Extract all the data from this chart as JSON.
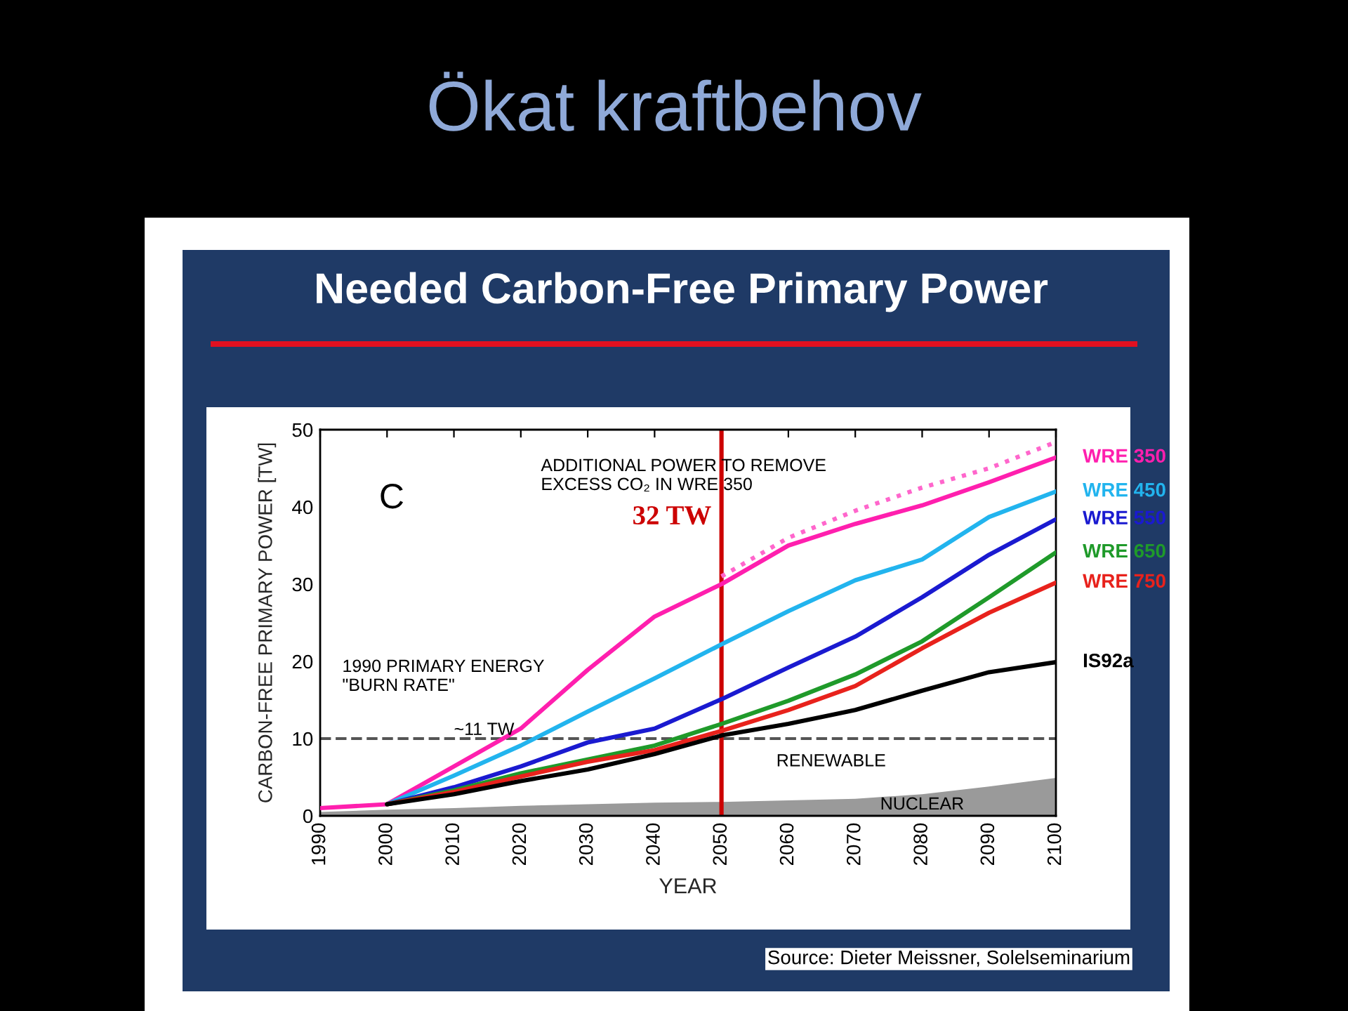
{
  "chart_data": {
    "type": "line",
    "title": "Ökat kraftbehov",
    "subtitle": "Needed Carbon-Free Primary Power",
    "xlabel": "YEAR",
    "ylabel": "CARBON-FREE PRIMARY POWER [TW]",
    "x": [
      1990,
      2000,
      2010,
      2020,
      2030,
      2040,
      2050,
      2060,
      2070,
      2080,
      2090,
      2100
    ],
    "series": [
      {
        "type": "area",
        "name": "NUCLEAR",
        "color": "#9a9a9a",
        "values": [
          0.5,
          0.8,
          1,
          1.3,
          1.5,
          1.7,
          1.8,
          2,
          2.2,
          2.8,
          3.8,
          4.9
        ]
      },
      {
        "color": "#ff66cc",
        "line_style": "dotted",
        "values": [
          null,
          null,
          null,
          null,
          null,
          null,
          31,
          36,
          39.5,
          42.5,
          45,
          48.4
        ]
      },
      {
        "name": "WRE 350",
        "color": "#ff1fae",
        "values": [
          1,
          1.5,
          6.4,
          11.3,
          18.9,
          25.8,
          30,
          35,
          37.8,
          40.2,
          43.2,
          46.4
        ]
      },
      {
        "name": "WRE 450",
        "color": "#22b4ee",
        "values": [
          null,
          1.5,
          5.2,
          9.1,
          13.5,
          17.8,
          22.2,
          26.5,
          30.5,
          33.2,
          38.7,
          42
        ]
      },
      {
        "name": "WRE 550",
        "color": "#1a1ad0",
        "values": [
          null,
          1.5,
          3.7,
          6.4,
          9.5,
          11.3,
          15.1,
          19.2,
          23.2,
          28.3,
          33.8,
          38.4
        ]
      },
      {
        "name": "WRE 650",
        "color": "#1f9a2a",
        "values": [
          null,
          1.5,
          3.3,
          5.5,
          7.3,
          9.1,
          11.9,
          14.9,
          18.3,
          22.6,
          28.3,
          34.1
        ]
      },
      {
        "name": "WRE 750",
        "color": "#e8221c",
        "values": [
          null,
          1.5,
          3.1,
          5.1,
          7,
          8.5,
          11,
          13.7,
          16.8,
          21.7,
          26.3,
          30.2
        ]
      },
      {
        "name": "IS92a",
        "color": "#000000",
        "values": [
          null,
          1.5,
          2.8,
          4.5,
          6,
          8,
          10.4,
          11.9,
          13.7,
          16.2,
          18.6,
          19.9
        ]
      }
    ],
    "xlim": [
      1990,
      2100
    ],
    "xticks": [
      1990,
      2000,
      2010,
      2020,
      2030,
      2040,
      2050,
      2060,
      2070,
      2080,
      2090,
      2100
    ],
    "ylim": [
      0,
      50
    ],
    "yticks": [
      0,
      10,
      20,
      30,
      40,
      50
    ],
    "grid": false,
    "legend": "right",
    "line_style": "solid",
    "marker": "none",
    "ref_lines": [
      {
        "axis": "y",
        "value": 10,
        "color": "#555555",
        "line_style": "dashed"
      },
      {
        "axis": "x",
        "value": 2050,
        "label": "32 TW",
        "color": "#cc0000"
      }
    ],
    "annotations": [
      "C",
      "ADDITIONAL POWER TO REMOVE\nEXCESS CO₂ IN WRE 350",
      "1990 PRIMARY ENERGY\n\"BURN RATE\"",
      {
        "text": "~11 TW",
        "x": 2010,
        "y": 10
      },
      "RENEWABLE",
      "Source: Dieter Meissner, Solelseminarium"
    ]
  }
}
